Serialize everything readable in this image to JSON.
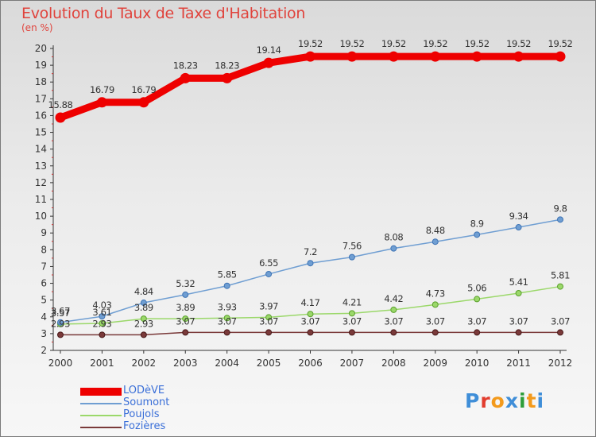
{
  "title": "Evolution du Taux de Taxe d'Habitation",
  "unit": "(en %)",
  "logo": {
    "text": "Proxiti",
    "letter_colors": [
      "#3f8ed8",
      "#e23d2e",
      "#f39a1c",
      "#3f8ed8",
      "#2e9e3a",
      "#f39a1c",
      "#3f8ed8"
    ]
  },
  "chart_data": {
    "type": "line",
    "title": "Evolution du Taux de Taxe d'Habitation",
    "ylabel": "(en %)",
    "xlabel": "",
    "x": [
      "2000",
      "2001",
      "2002",
      "2003",
      "2004",
      "2005",
      "2006",
      "2007",
      "2008",
      "2009",
      "2010",
      "2011",
      "2012"
    ],
    "ylim": [
      2,
      20
    ],
    "yticks": [
      2,
      3,
      4,
      5,
      6,
      7,
      8,
      9,
      10,
      11,
      12,
      13,
      14,
      15,
      16,
      17,
      18,
      19,
      20
    ],
    "grid": false,
    "legend_position": "bottom-left",
    "series": [
      {
        "name": "LODèVE",
        "color": "#ee0000",
        "values": [
          15.88,
          16.79,
          16.79,
          18.23,
          18.23,
          19.14,
          19.52,
          19.52,
          19.52,
          19.52,
          19.52,
          19.52,
          19.52
        ],
        "labels": [
          "15.88",
          "16.79",
          "16.79",
          "18.23",
          "18.23",
          "19.14",
          "19.52",
          "19.52",
          "19.52",
          "19.52",
          "19.52",
          "19.52",
          "19.52"
        ]
      },
      {
        "name": "Soumont",
        "color": "#6f9ed2",
        "values": [
          3.67,
          4.03,
          4.84,
          5.32,
          5.85,
          6.55,
          7.2,
          7.56,
          8.08,
          8.48,
          8.9,
          9.34,
          9.8
        ],
        "labels": [
          "3.67",
          "4.03",
          "4.84",
          "5.32",
          "5.85",
          "6.55",
          "7.2",
          "7.56",
          "8.08",
          "8.48",
          "8.9",
          "9.34",
          "9.8"
        ]
      },
      {
        "name": "Poujols",
        "color": "#9bd86a",
        "values": [
          3.57,
          3.61,
          3.89,
          3.89,
          3.93,
          3.97,
          4.17,
          4.21,
          4.42,
          4.73,
          5.06,
          5.41,
          5.81
        ],
        "labels": [
          "3.57",
          "3.61",
          "3.89",
          "3.89",
          "3.93",
          "3.97",
          "4.17",
          "4.21",
          "4.42",
          "4.73",
          "5.06",
          "5.41",
          "5.81"
        ]
      },
      {
        "name": "Fozières",
        "color": "#7a3a3a",
        "values": [
          2.93,
          2.93,
          2.93,
          3.07,
          3.07,
          3.07,
          3.07,
          3.07,
          3.07,
          3.07,
          3.07,
          3.07,
          3.07
        ],
        "labels": [
          "2.93",
          "2.93",
          "2.93",
          "3.07",
          "3.07",
          "3.07",
          "3.07",
          "3.07",
          "3.07",
          "3.07",
          "3.07",
          "3.07",
          "3.07"
        ]
      }
    ]
  }
}
